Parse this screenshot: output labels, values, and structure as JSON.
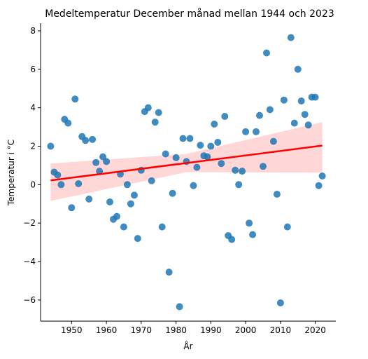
{
  "chart_data": {
    "type": "scatter",
    "title": "Medeltemperatur December månad mellan 1944 och 2023",
    "xlabel": "År",
    "ylabel": "Temperatur i °C",
    "xlim": [
      1941.1,
      2025.9
    ],
    "ylim": [
      -7.1,
      8.4
    ],
    "xticks": [
      1950,
      1960,
      1970,
      1980,
      1990,
      2000,
      2010,
      2020
    ],
    "yticks": [
      -6,
      -4,
      -2,
      0,
      2,
      4,
      6,
      8
    ],
    "grid": false,
    "legend": "none",
    "colors": {
      "points": "#1f77b4",
      "regression": "#ff0000",
      "ci_band": "#ffd0d0"
    },
    "series": [
      {
        "x": [
          1944,
          1945,
          1946,
          1947,
          1948,
          1949,
          1950,
          1951,
          1952,
          1953,
          1954,
          1955,
          1956,
          1957,
          1958,
          1959,
          1960,
          1961,
          1962,
          1963,
          1964,
          1965,
          1966,
          1967,
          1968,
          1969,
          1970,
          1971,
          1972,
          1973,
          1974,
          1975,
          1976,
          1977,
          1978,
          1979,
          1980,
          1981,
          1982,
          1983,
          1984,
          1985,
          1986,
          1987,
          1988,
          1989,
          1990,
          1991,
          1992,
          1993,
          1994,
          1995,
          1996,
          1997,
          1998,
          1999,
          2000,
          2001,
          2002,
          2003,
          2004,
          2005,
          2006,
          2007,
          2008,
          2009,
          2010,
          2011,
          2012,
          2013,
          2014,
          2015,
          2016,
          2017,
          2018,
          2019,
          2020,
          2021,
          2022
        ],
        "y": [
          2.0,
          0.65,
          0.5,
          0.0,
          3.4,
          3.2,
          -1.2,
          4.45,
          0.05,
          2.5,
          2.3,
          -0.75,
          2.35,
          1.15,
          0.7,
          1.45,
          1.2,
          -0.9,
          -1.8,
          -1.65,
          0.55,
          -2.2,
          0.0,
          -1.0,
          -0.55,
          -2.8,
          0.75,
          3.8,
          4.0,
          0.2,
          3.25,
          3.75,
          -2.2,
          1.6,
          -4.55,
          -0.45,
          1.4,
          -6.35,
          2.4,
          1.2,
          2.4,
          -0.05,
          0.9,
          2.05,
          1.5,
          1.45,
          2.0,
          3.15,
          2.2,
          1.1,
          3.55,
          -2.65,
          -2.85,
          0.75,
          0.0,
          0.7,
          2.75,
          -2.0,
          -2.6,
          2.75,
          3.6,
          0.95,
          6.85,
          3.9,
          2.25,
          -0.5,
          -6.15,
          4.4,
          -2.2,
          7.65,
          3.2,
          6.0,
          4.35,
          3.65,
          3.1,
          4.55,
          4.55,
          -0.05,
          0.45
        ]
      }
    ],
    "regression": {
      "x": [
        1944,
        2022
      ],
      "y": [
        0.22,
        2.03
      ],
      "ci_upper": [
        1.1,
        3.25
      ],
      "ci_lower": [
        -0.85,
        0.62
      ],
      "ci_mid": {
        "x": 1983,
        "upper": 1.6,
        "lower": 0.65
      }
    }
  }
}
